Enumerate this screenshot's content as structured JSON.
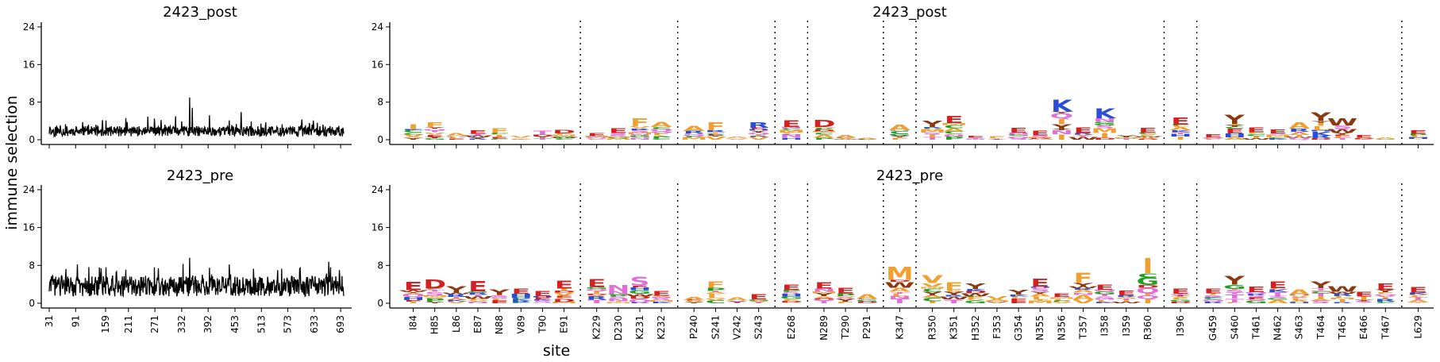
{
  "figure": {
    "ylabel": "immune selection",
    "xlabel": "site"
  },
  "chart_data": [
    {
      "type": "line",
      "title": "2423_post",
      "ylim": [
        0,
        25
      ],
      "yticks": [
        0,
        8,
        16,
        24
      ],
      "xticks": [
        31,
        91,
        159,
        211,
        271,
        332,
        392,
        453,
        513,
        573,
        633,
        693
      ],
      "x_range": [
        31,
        700
      ],
      "baseline": 1.8,
      "spikes": [
        [
          120,
          3.2
        ],
        [
          160,
          4.1
        ],
        [
          205,
          4.6
        ],
        [
          255,
          4.9
        ],
        [
          285,
          4.2
        ],
        [
          318,
          5.0
        ],
        [
          350,
          9.0
        ],
        [
          356,
          6.8
        ],
        [
          395,
          5.2
        ],
        [
          440,
          4.1
        ],
        [
          467,
          5.9
        ],
        [
          490,
          3.9
        ],
        [
          560,
          3.3
        ],
        [
          605,
          4.3
        ],
        [
          640,
          3.6
        ]
      ],
      "color": "#000000"
    },
    {
      "type": "line",
      "title": "2423_pre",
      "ylim": [
        0,
        25
      ],
      "yticks": [
        0,
        8,
        16,
        24
      ],
      "xticks": [
        31,
        91,
        159,
        211,
        271,
        332,
        392,
        453,
        513,
        573,
        633,
        693
      ],
      "x_range": [
        31,
        700
      ],
      "baseline": 3.6,
      "spikes": [
        [
          95,
          8.2
        ],
        [
          160,
          7.6
        ],
        [
          205,
          7.1
        ],
        [
          270,
          7.6
        ],
        [
          335,
          8.3
        ],
        [
          350,
          9.6
        ],
        [
          395,
          7.5
        ],
        [
          440,
          8.2
        ],
        [
          495,
          7.3
        ],
        [
          550,
          7.0
        ],
        [
          600,
          7.3
        ],
        [
          690,
          7.0
        ]
      ],
      "color": "#000000"
    },
    {
      "type": "logo",
      "title": "2423_post",
      "ylim": [
        0,
        25
      ],
      "yticks": [
        0,
        8,
        16,
        24
      ],
      "sites": [
        "I84",
        "H85",
        "L86",
        "E87",
        "N88",
        "V89",
        "T90",
        "E91",
        "K229",
        "D230",
        "K231",
        "K232",
        "P240",
        "S241",
        "V242",
        "S243",
        "E268",
        "N289",
        "T290",
        "P291",
        "K347",
        "R350",
        "K351",
        "H352",
        "F353",
        "G354",
        "N355",
        "N356",
        "T357",
        "I358",
        "I359",
        "R360",
        "I396",
        "G459",
        "S460",
        "T461",
        "N462",
        "S463",
        "T464",
        "T465",
        "E466",
        "T467",
        "L629"
      ],
      "heights": [
        3.3,
        3.8,
        1.4,
        2.1,
        2.4,
        0.8,
        2.0,
        2.1,
        1.4,
        2.4,
        4.6,
        3.9,
        2.9,
        3.7,
        0.7,
        3.8,
        4.2,
        4.2,
        0.9,
        0.3,
        3.2,
        4.0,
        5.1,
        0.8,
        0.7,
        2.6,
        1.9,
        8.6,
        2.7,
        6.7,
        0.9,
        2.6,
        4.8,
        1.2,
        5.4,
        2.7,
        2.2,
        3.7,
        5.9,
        4.6,
        0.9,
        0.4,
        2.1
      ],
      "top_letters": [
        "I",
        "F",
        "A",
        "E",
        "F",
        "V",
        "T",
        "D",
        "E",
        "E",
        "F",
        "A",
        "A",
        "F",
        "A",
        "R",
        "E",
        "D",
        "A",
        "A",
        "A",
        "Y",
        "E",
        "E",
        "F",
        "E",
        "E",
        "K",
        "E",
        "K",
        "Y",
        "E",
        "E",
        "E",
        "Y",
        "E",
        "E",
        "A",
        "Y",
        "W",
        "E",
        "A",
        "E"
      ],
      "groups_after": [
        7,
        11,
        15,
        16,
        19,
        20,
        31,
        32,
        41
      ]
    },
    {
      "type": "logo",
      "title": "2423_pre",
      "ylim": [
        0,
        25
      ],
      "yticks": [
        0,
        8,
        16,
        24
      ],
      "sites": [
        "I84",
        "H85",
        "L86",
        "E87",
        "N88",
        "V89",
        "T90",
        "E91",
        "K229",
        "D230",
        "K231",
        "K232",
        "P240",
        "S241",
        "V242",
        "S243",
        "E268",
        "N289",
        "T290",
        "P291",
        "K347",
        "R350",
        "K351",
        "H352",
        "F353",
        "G354",
        "N355",
        "N356",
        "T357",
        "I358",
        "I359",
        "R360",
        "I396",
        "G459",
        "S460",
        "T461",
        "N462",
        "S463",
        "T464",
        "T465",
        "E466",
        "T467",
        "L629"
      ],
      "heights": [
        4.6,
        5.1,
        3.6,
        4.8,
        3.0,
        3.1,
        2.7,
        4.8,
        5.1,
        3.9,
        5.7,
        2.6,
        1.3,
        4.6,
        1.2,
        2.0,
        4.0,
        4.4,
        3.3,
        1.9,
        7.8,
        5.9,
        4.5,
        4.2,
        1.5,
        2.9,
        5.2,
        2.1,
        6.5,
        4.0,
        2.6,
        9.6,
        3.1,
        3.1,
        5.8,
        3.6,
        4.6,
        3.0,
        4.6,
        3.6,
        2.5,
        4.2,
        3.5
      ],
      "top_letters": [
        "E",
        "D",
        "Y",
        "E",
        "Y",
        "E",
        "E",
        "E",
        "E",
        "N",
        "S",
        "E",
        "A",
        "F",
        "A",
        "E",
        "E",
        "E",
        "E",
        "A",
        "M",
        "V",
        "F",
        "Y",
        "V",
        "Y",
        "E",
        "E",
        "F",
        "E",
        "E",
        "I",
        "E",
        "E",
        "Y",
        "E",
        "E",
        "A",
        "Y",
        "W",
        "E",
        "E",
        "E"
      ],
      "groups_after": [
        7,
        11,
        15,
        16,
        19,
        20,
        31,
        32,
        41
      ]
    }
  ]
}
